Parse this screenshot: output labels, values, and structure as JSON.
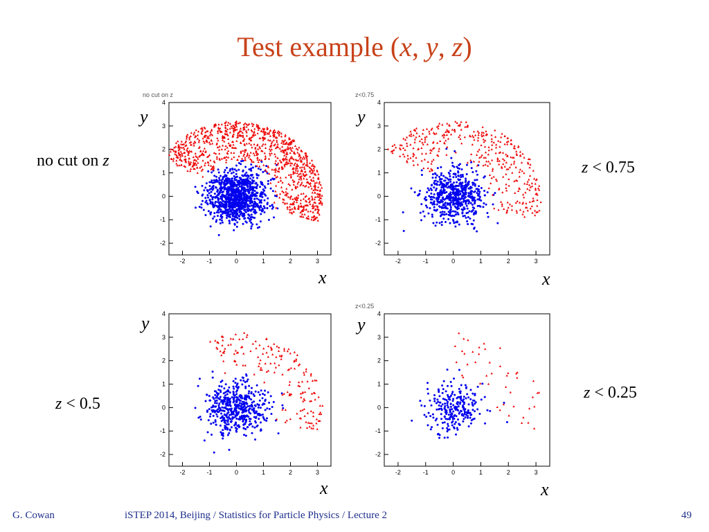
{
  "slide": {
    "title_pre": "Test example (",
    "title_x": "x",
    "title_sep1": ", ",
    "title_y": "y",
    "title_sep2": ", ",
    "title_z": "z",
    "title_post": ")"
  },
  "footer": {
    "author": "G. Cowan",
    "course": "iSTEP 2014, Beijing / Statistics for Particle Physics / Lecture 2",
    "page": "49"
  },
  "colors": {
    "signal": "#0000ee",
    "background": "#ee0000",
    "title": "#c8421a",
    "footer": "#1f2f8c"
  },
  "panels": [
    {
      "tag": "no cut on z",
      "xlabel": "x",
      "ylabel": "y",
      "cond_var": "",
      "cond_text": "no cut on ",
      "cond_z": "z"
    },
    {
      "tag": "z<0.75",
      "xlabel": "x",
      "ylabel": "y",
      "cond_var": "z",
      "cond_text": " < 0.75",
      "cond_z": ""
    },
    {
      "tag": "",
      "xlabel": "x",
      "ylabel": "y",
      "cond_var": "z",
      "cond_text": " < 0.5",
      "cond_z": ""
    },
    {
      "tag": "z<0.25",
      "xlabel": "x",
      "ylabel": "y",
      "cond_var": "z",
      "cond_text": " < 0.25",
      "cond_z": ""
    }
  ],
  "chart_data": [
    {
      "type": "scatter",
      "title": "no cut on z",
      "xlabel": "x",
      "ylabel": "y",
      "xlim": [
        -2.5,
        3.5
      ],
      "ylim": [
        -2.5,
        4
      ],
      "xticks": [
        -2,
        -1,
        0,
        1,
        2,
        3
      ],
      "yticks": [
        -2,
        -1,
        0,
        1,
        2,
        3,
        4
      ],
      "series": [
        {
          "color": "#0000ee",
          "marker": "circle",
          "count": 1000,
          "distribution": "gaussian",
          "center": [
            0.0,
            0.0
          ],
          "sigma": [
            0.55,
            0.55
          ]
        },
        {
          "color": "#ee0000",
          "marker": "triangle",
          "count": 1000,
          "distribution": "arc",
          "center": [
            0.0,
            0.0
          ],
          "radius": [
            1.3,
            3.2
          ],
          "angle_deg": [
            -20,
            150
          ]
        }
      ]
    },
    {
      "type": "scatter",
      "title": "z<0.75",
      "xlabel": "x",
      "ylabel": "y",
      "xlim": [
        -2.5,
        3.5
      ],
      "ylim": [
        -2.5,
        4
      ],
      "xticks": [
        -2,
        -1,
        0,
        1,
        2,
        3
      ],
      "yticks": [
        -2,
        -1,
        0,
        1,
        2,
        3,
        4
      ],
      "series": [
        {
          "color": "#0000ee",
          "marker": "circle",
          "count": 600,
          "distribution": "gaussian",
          "center": [
            0.0,
            0.0
          ],
          "sigma": [
            0.55,
            0.55
          ]
        },
        {
          "color": "#ee0000",
          "marker": "triangle",
          "count": 380,
          "distribution": "arc",
          "center": [
            0.0,
            0.0
          ],
          "radius": [
            1.3,
            3.2
          ],
          "angle_deg": [
            -20,
            140
          ]
        }
      ]
    },
    {
      "type": "scatter",
      "title": "z<0.5",
      "xlabel": "x",
      "ylabel": "y",
      "xlim": [
        -2.5,
        3.5
      ],
      "ylim": [
        -2.5,
        4
      ],
      "xticks": [
        -2,
        -1,
        0,
        1,
        2,
        3
      ],
      "yticks": [
        -2,
        -1,
        0,
        1,
        2,
        3,
        4
      ],
      "series": [
        {
          "color": "#0000ee",
          "marker": "circle",
          "count": 500,
          "distribution": "gaussian",
          "center": [
            0.0,
            0.0
          ],
          "sigma": [
            0.55,
            0.55
          ]
        },
        {
          "color": "#ee0000",
          "marker": "triangle",
          "count": 180,
          "distribution": "arc",
          "center": [
            0.0,
            0.0
          ],
          "radius": [
            1.3,
            3.2
          ],
          "angle_deg": [
            -20,
            110
          ]
        }
      ]
    },
    {
      "type": "scatter",
      "title": "z<0.25",
      "xlabel": "x",
      "ylabel": "y",
      "xlim": [
        -2.5,
        3.5
      ],
      "ylim": [
        -2.5,
        4
      ],
      "xticks": [
        -2,
        -1,
        0,
        1,
        2,
        3
      ],
      "yticks": [
        -2,
        -1,
        0,
        1,
        2,
        3,
        4
      ],
      "series": [
        {
          "color": "#0000ee",
          "marker": "circle",
          "count": 250,
          "distribution": "gaussian",
          "center": [
            0.0,
            0.0
          ],
          "sigma": [
            0.55,
            0.55
          ]
        },
        {
          "color": "#ee0000",
          "marker": "triangle",
          "count": 45,
          "distribution": "arc",
          "center": [
            0.0,
            0.0
          ],
          "radius": [
            1.3,
            3.2
          ],
          "angle_deg": [
            -20,
            90
          ]
        }
      ]
    }
  ]
}
